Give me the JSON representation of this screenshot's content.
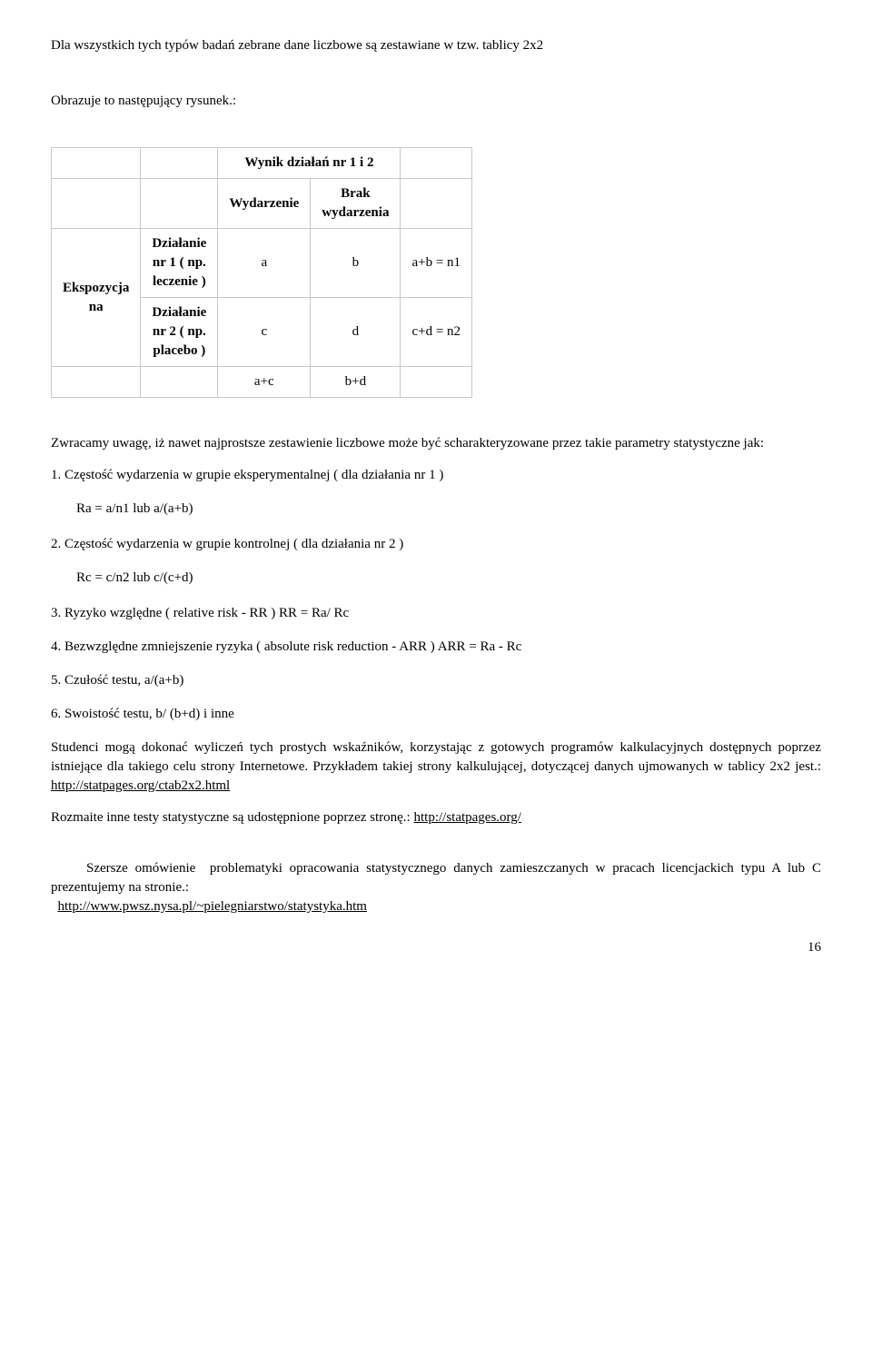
{
  "intro": {
    "p1": "Dla wszystkich tych typów badań zebrane dane liczbowe  są zestawiane w tzw. tablicy 2x2",
    "p2": "Obrazuje to następujący rysunek.:"
  },
  "table": {
    "header_top": "Wynik działań nr 1 i 2",
    "col1": "Wydarzenie",
    "col2_line1": "Brak",
    "col2_line2": "wydarzenia",
    "rowlabel_line1": "Ekspozycja",
    "rowlabel_line2": "na",
    "r1_label_l1": "Działanie",
    "r1_label_l2": "nr 1 ( np.",
    "r1_label_l3": "leczenie )",
    "r1_c1": "a",
    "r1_c2": "b",
    "r1_c3": "a+b = n1",
    "r2_label_l1": "Działanie",
    "r2_label_l2": "nr 2 ( np.",
    "r2_label_l3": "placebo )",
    "r2_c1": "c",
    "r2_c2": "d",
    "r2_c3": "c+d = n2",
    "tot_c1": "a+c",
    "tot_c2": "b+d"
  },
  "para_after_table": "Zwracamy uwagę, iż  nawet najprostsze zestawienie  liczbowe może być  scharakteryzowane przez takie parametry statystyczne jak:",
  "items": {
    "i1": "1. Częstość  wydarzenia w grupie  eksperymentalnej  ( dla działania nr 1 )",
    "i1s": "Ra = a/n1 lub  a/(a+b)",
    "i2": "2. Częstość   wydarzenia  w grupie kontrolnej ( dla działania nr 2 )",
    "i2s": "Rc = c/n2 lub c/(c+d)",
    "i3": "3. Ryzyko  względne ( relative risk  - RR )  RR = Ra/ Rc",
    "i4": "4. Bezwzględne zmniejszenie ryzyka ( absolute risk reduction  -  ARR )   ARR = Ra - Rc",
    "i5": "5. Czułość testu,  a/(a+b)",
    "i6": "6. Swoistość testu,  b/ (b+d)   i  inne"
  },
  "para_students_pre": "Studenci mogą dokonać wyliczeń tych prostych wskaźników, korzystając z gotowych programów kalkulacyjnych dostępnych poprzez  istniejące dla takiego celu strony Internetowe. Przykładem takiej strony kalkulującej, dotyczącej danych ujmowanych w tablicy 2x2 jest.: ",
  "link1": "http://statpages.org/ctab2x2.html",
  "para_rozmaite_pre": "Rozmaite inne testy statystyczne są udostępnione poprzez stronę.: ",
  "link2": "http://statpages.org/",
  "para_szersze_pre": "   Szersze omówienie  problematyki opracowania statystycznego danych zamieszczanych w pracach licencjackich typu A lub C prezentujemy na stronie.: ",
  "link3": "http://www.pwsz.nysa.pl/~pielegniarstwo/statystyka.htm",
  "pagenum": "16"
}
